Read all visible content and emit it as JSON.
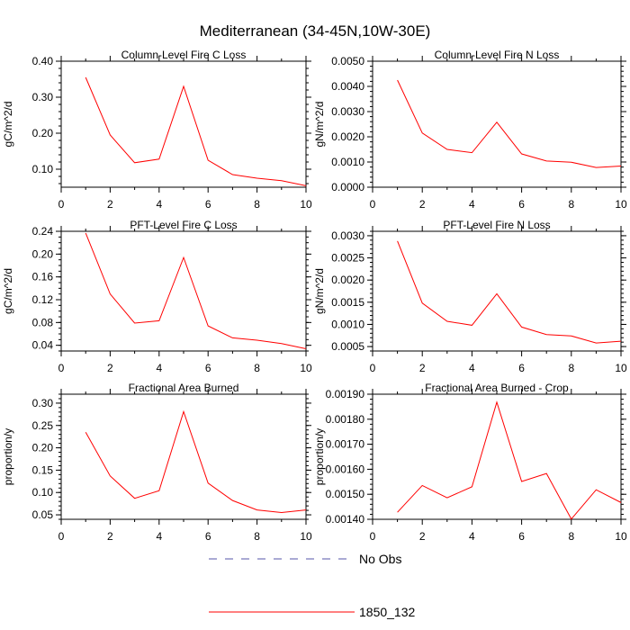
{
  "title": "Mediterranean (34-45N,10W-30E)",
  "colors": {
    "model": "#ff0000",
    "obs": "#5555aa",
    "axis": "#000000"
  },
  "legend": [
    {
      "label": "No Obs",
      "style": "dashed",
      "color": "#5555aa"
    },
    {
      "label": "1850_132",
      "style": "solid",
      "color": "#ff0000"
    }
  ],
  "chart_data": [
    {
      "type": "line",
      "title": "Column-Level Fire C Loss",
      "ylabel": "gC/m^2/d",
      "xlim": [
        0,
        10
      ],
      "ylim": [
        0.05,
        0.4
      ],
      "yticks": [
        0.1,
        0.2,
        0.3,
        0.4
      ],
      "yminor": 0.02,
      "ytick_labels": [
        "0.10",
        "0.20",
        "0.30",
        "0.40"
      ],
      "xticks": [
        0,
        2,
        4,
        6,
        8,
        10
      ],
      "xtick_labels": [
        "0",
        "2",
        "4",
        "6",
        "8",
        "10"
      ],
      "series": [
        {
          "name": "1850_132",
          "x": [
            1,
            2,
            3,
            4,
            5,
            6,
            7,
            8,
            9,
            10
          ],
          "values": [
            0.355,
            0.195,
            0.118,
            0.128,
            0.33,
            0.125,
            0.085,
            0.075,
            0.068,
            0.054
          ]
        }
      ]
    },
    {
      "type": "line",
      "title": "Column-Level Fire N Loss",
      "ylabel": "gN/m^2/d",
      "xlim": [
        0,
        10
      ],
      "ylim": [
        0.0,
        0.005
      ],
      "yticks": [
        0.0,
        0.001,
        0.002,
        0.003,
        0.004,
        0.005
      ],
      "yminor": 0.0002,
      "ytick_labels": [
        "0.0000",
        "0.0010",
        "0.0020",
        "0.0030",
        "0.0040",
        "0.0050"
      ],
      "xticks": [
        0,
        2,
        4,
        6,
        8,
        10
      ],
      "xtick_labels": [
        "0",
        "2",
        "4",
        "6",
        "8",
        "10"
      ],
      "series": [
        {
          "name": "1850_132",
          "x": [
            1,
            2,
            3,
            4,
            5,
            6,
            7,
            8,
            9,
            10
          ],
          "values": [
            0.00425,
            0.00215,
            0.0015,
            0.00137,
            0.00258,
            0.00132,
            0.00104,
            0.00099,
            0.00078,
            0.00084
          ]
        }
      ]
    },
    {
      "type": "line",
      "title": "PFT-Level Fire C Loss",
      "ylabel": "gC/m^2/d",
      "xlim": [
        0,
        10
      ],
      "ylim": [
        0.03,
        0.24
      ],
      "yticks": [
        0.04,
        0.08,
        0.12,
        0.16,
        0.2,
        0.24
      ],
      "yminor": 0.01,
      "ytick_labels": [
        "0.04",
        "0.08",
        "0.12",
        "0.16",
        "0.20",
        "0.24"
      ],
      "xticks": [
        0,
        2,
        4,
        6,
        8,
        10
      ],
      "xtick_labels": [
        "0",
        "2",
        "4",
        "6",
        "8",
        "10"
      ],
      "series": [
        {
          "name": "1850_132",
          "x": [
            1,
            2,
            3,
            4,
            5,
            6,
            7,
            8,
            9,
            10
          ],
          "values": [
            0.237,
            0.13,
            0.079,
            0.083,
            0.194,
            0.074,
            0.053,
            0.049,
            0.043,
            0.034
          ]
        }
      ]
    },
    {
      "type": "line",
      "title": "PFT-Level Fire N Loss",
      "ylabel": "gN/m^2/d",
      "xlim": [
        0,
        10
      ],
      "ylim": [
        0.0004,
        0.0031
      ],
      "yticks": [
        0.0005,
        0.001,
        0.0015,
        0.002,
        0.0025,
        0.003
      ],
      "yminor": 0.0001,
      "ytick_labels": [
        "0.0005",
        "0.0010",
        "0.0015",
        "0.0020",
        "0.0025",
        "0.0030"
      ],
      "xticks": [
        0,
        2,
        4,
        6,
        8,
        10
      ],
      "xtick_labels": [
        "0",
        "2",
        "4",
        "6",
        "8",
        "10"
      ],
      "series": [
        {
          "name": "1850_132",
          "x": [
            1,
            2,
            3,
            4,
            5,
            6,
            7,
            8,
            9,
            10
          ],
          "values": [
            0.00288,
            0.00148,
            0.00107,
            0.00098,
            0.00169,
            0.00094,
            0.00077,
            0.00074,
            0.00058,
            0.00062
          ]
        }
      ]
    },
    {
      "type": "line",
      "title": "Fractional Area Burned",
      "ylabel": "proportion/y",
      "xlim": [
        0,
        10
      ],
      "ylim": [
        0.04,
        0.32
      ],
      "yticks": [
        0.05,
        0.1,
        0.15,
        0.2,
        0.25,
        0.3
      ],
      "yminor": 0.01,
      "ytick_labels": [
        "0.05",
        "0.10",
        "0.15",
        "0.20",
        "0.25",
        "0.30"
      ],
      "xticks": [
        0,
        2,
        4,
        6,
        8,
        10
      ],
      "xtick_labels": [
        "0",
        "2",
        "4",
        "6",
        "8",
        "10"
      ],
      "series": [
        {
          "name": "1850_132",
          "x": [
            1,
            2,
            3,
            4,
            5,
            6,
            7,
            8,
            9,
            10
          ],
          "values": [
            0.235,
            0.137,
            0.087,
            0.104,
            0.281,
            0.121,
            0.082,
            0.061,
            0.055,
            0.061
          ]
        }
      ]
    },
    {
      "type": "line",
      "title": "Fractional Area Burned - Crop",
      "ylabel": "proportion/y",
      "xlim": [
        0,
        10
      ],
      "ylim": [
        0.0014,
        0.0019
      ],
      "yticks": [
        0.0014,
        0.0015,
        0.0016,
        0.0017,
        0.0018,
        0.0019
      ],
      "yminor": 2e-05,
      "ytick_labels": [
        "0.00140",
        "0.00150",
        "0.00160",
        "0.00170",
        "0.00180",
        "0.00190"
      ],
      "xticks": [
        0,
        2,
        4,
        6,
        8,
        10
      ],
      "xtick_labels": [
        "0",
        "2",
        "4",
        "6",
        "8",
        "10"
      ],
      "series": [
        {
          "name": "1850_132",
          "x": [
            1,
            2,
            3,
            4,
            5,
            6,
            7,
            8,
            9,
            10
          ],
          "values": [
            0.001428,
            0.001535,
            0.001486,
            0.00153,
            0.001868,
            0.001551,
            0.001583,
            0.001401,
            0.001518,
            0.001467
          ]
        }
      ]
    }
  ]
}
